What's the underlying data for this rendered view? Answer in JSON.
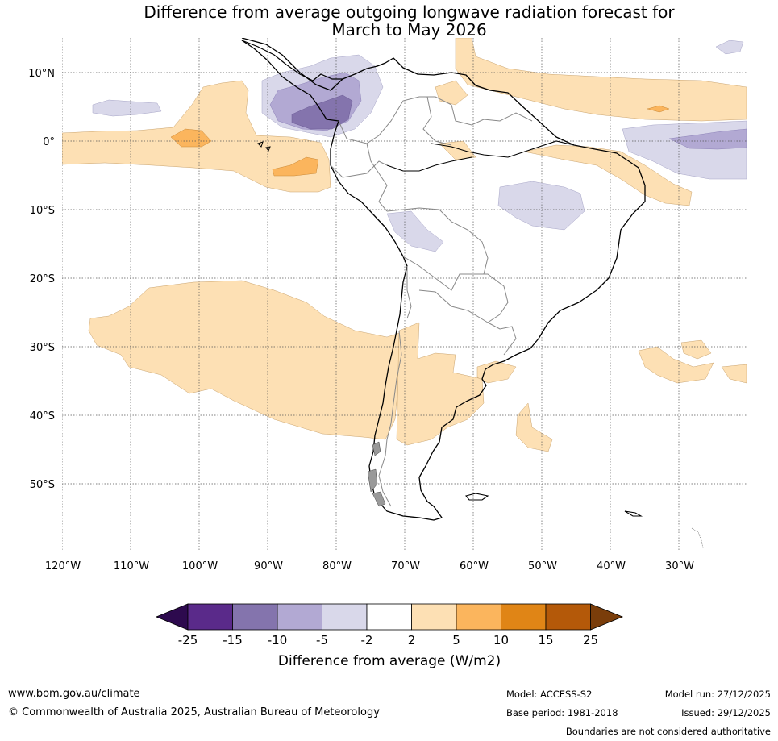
{
  "title": {
    "line1": "Difference from average outgoing longwave radiation forecast for",
    "line2": "March to May 2026"
  },
  "map": {
    "lat_labels": [
      "10°N",
      "0°",
      "10°S",
      "20°S",
      "30°S",
      "40°S",
      "50°S"
    ],
    "lon_labels": [
      "120°W",
      "110°W",
      "100°W",
      "90°W",
      "80°W",
      "70°W",
      "60°W",
      "50°W",
      "40°W",
      "30°W"
    ]
  },
  "legend": {
    "title": "Difference from average (W/m2)",
    "ticks": [
      "-25",
      "-15",
      "-10",
      "-5",
      "-2",
      "2",
      "5",
      "10",
      "15",
      "25"
    ],
    "colors": [
      "#2d0a4e",
      "#5a2a8a",
      "#8474ad",
      "#b2a9d3",
      "#d9d8ea",
      "#ffffff",
      "#fde0b4",
      "#fbb55d",
      "#e08516",
      "#b45909",
      "#7a3d0a"
    ]
  },
  "footer": {
    "url": "www.bom.gov.au/climate",
    "copyright": "© Commonwealth of Australia 2025, Australian Bureau of Meteorology",
    "model": "Model: ACCESS-S2",
    "model_run": "Model run: 27/12/2025",
    "base_period": "Base period: 1981-2018",
    "issued": "Issued: 29/12/2025",
    "boundaries": "Boundaries are not considered authoritative"
  }
}
